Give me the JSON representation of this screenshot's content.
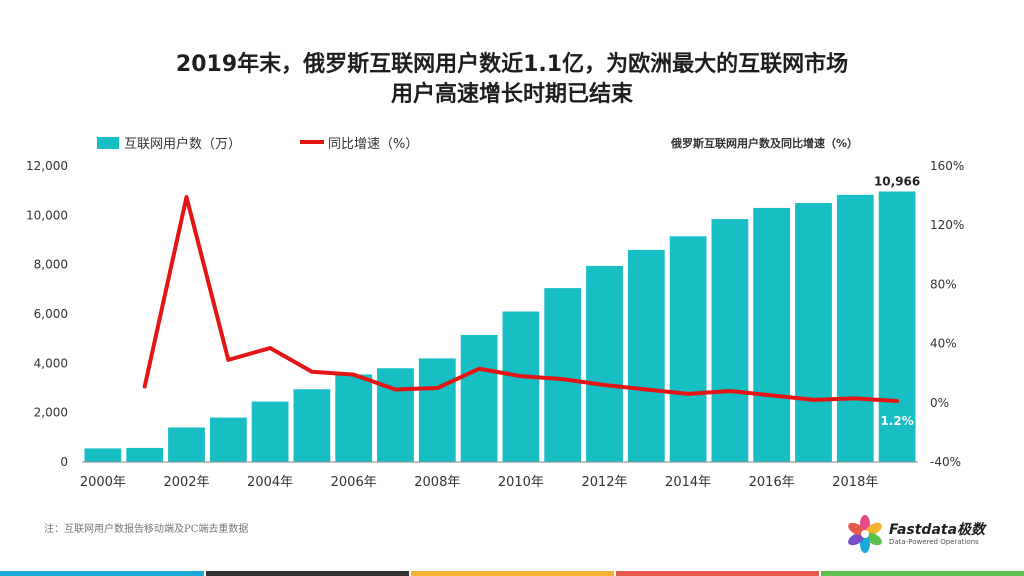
{
  "title_lines": [
    "2019年末，俄罗斯互联网用户数近1.1亿，为欧洲最大的互联网市场",
    "用户高速增长时期已结束"
  ],
  "note": "注：互联网用户数报告移动端及PC端去重数据",
  "logo": {
    "name": "Fastdata极数",
    "tagline": "Data-Powered Operations"
  },
  "colors": {
    "bar": "#17bec4",
    "line": "#e31515",
    "axis": "#555555",
    "footer": [
      "#1ba9d6",
      "#333333",
      "#f2b232",
      "#e55a4f",
      "#5cbf4e"
    ]
  },
  "chart_data": {
    "type": "bar",
    "title": "俄罗斯互联网用户数及同比增速（%）",
    "categories": [
      "2000年",
      "2001年",
      "2002年",
      "2003年",
      "2004年",
      "2005年",
      "2006年",
      "2007年",
      "2008年",
      "2009年",
      "2010年",
      "2011年",
      "2012年",
      "2013年",
      "2014年",
      "2015年",
      "2016年",
      "2017年",
      "2018年",
      "2019年"
    ],
    "x_tick_labels": [
      "2000年",
      "2002年",
      "2004年",
      "2006年",
      "2008年",
      "2010年",
      "2012年",
      "2014年",
      "2016年",
      "2018年"
    ],
    "series": [
      {
        "name": "互联网用户数（万）",
        "type": "bar",
        "axis": "left",
        "values": [
          550,
          570,
          1400,
          1800,
          2450,
          2950,
          3550,
          3800,
          4200,
          5150,
          6100,
          7050,
          7950,
          8600,
          9150,
          9850,
          10300,
          10500,
          10830,
          10966
        ]
      },
      {
        "name": "同比增速（%）",
        "type": "line",
        "axis": "right",
        "values": [
          null,
          11,
          139,
          29,
          37,
          21,
          19,
          9,
          10,
          23,
          18,
          16,
          12,
          9,
          6,
          8,
          5,
          2,
          3,
          1.2
        ]
      }
    ],
    "y_left": {
      "range": [
        0,
        12000
      ],
      "ticks": [
        "0",
        "2,000",
        "4,000",
        "6,000",
        "8,000",
        "10,000",
        "12,000"
      ]
    },
    "y_right": {
      "range": [
        -40,
        160
      ],
      "ticks": [
        "-40%",
        "0%",
        "40%",
        "80%",
        "120%",
        "160%"
      ]
    },
    "data_labels": {
      "last_bar": "10,966",
      "last_growth": "1.2%"
    },
    "legend_placement": "top-left",
    "grid": false
  }
}
